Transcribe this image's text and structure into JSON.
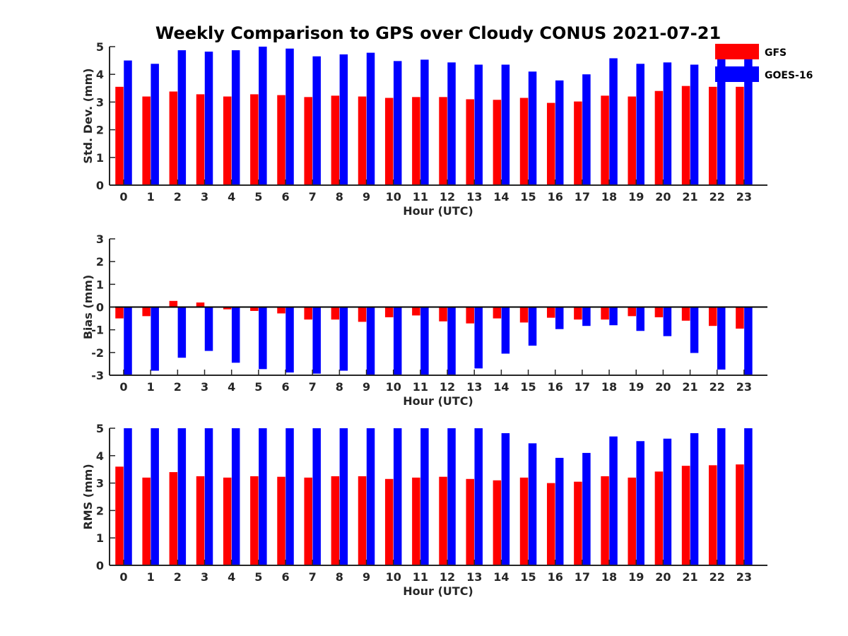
{
  "title": "Weekly Comparison to GPS over Cloudy CONUS 2021-07-21",
  "colors": {
    "gfs": "#ff0000",
    "goes": "#0000ff",
    "axis": "#262626"
  },
  "legend": {
    "placement": "top-right",
    "items": [
      "GFS",
      "GOES-16"
    ]
  },
  "chart_data": [
    {
      "type": "bar",
      "xlabel": "Hour (UTC)",
      "ylabel": "Std. Dev. (mm)",
      "ylim": [
        0,
        5
      ],
      "yticks": [
        0,
        1,
        2,
        3,
        4,
        5
      ],
      "grid": false,
      "categories": [
        "0",
        "1",
        "2",
        "3",
        "4",
        "5",
        "6",
        "7",
        "8",
        "9",
        "10",
        "11",
        "12",
        "13",
        "14",
        "15",
        "16",
        "17",
        "18",
        "19",
        "20",
        "21",
        "22",
        "23"
      ],
      "series": [
        {
          "name": "GFS",
          "values": [
            3.55,
            3.2,
            3.38,
            3.28,
            3.2,
            3.28,
            3.25,
            3.18,
            3.23,
            3.2,
            3.15,
            3.18,
            3.18,
            3.1,
            3.08,
            3.15,
            2.97,
            3.02,
            3.23,
            3.2,
            3.4,
            3.58,
            3.55,
            3.55
          ]
        },
        {
          "name": "GOES-16",
          "values": [
            4.5,
            4.38,
            4.87,
            4.82,
            4.87,
            5.0,
            4.93,
            4.65,
            4.72,
            4.78,
            4.48,
            4.53,
            4.43,
            4.35,
            4.35,
            4.1,
            3.78,
            4.0,
            4.58,
            4.38,
            4.43,
            4.35,
            4.55,
            4.6
          ]
        }
      ]
    },
    {
      "type": "bar",
      "xlabel": "Hour (UTC)",
      "ylabel": "Bias (mm)",
      "ylim": [
        -3,
        3
      ],
      "yticks": [
        -3,
        -2,
        -1,
        0,
        1,
        2,
        3
      ],
      "grid": false,
      "zero_line": true,
      "categories": [
        "0",
        "1",
        "2",
        "3",
        "4",
        "5",
        "6",
        "7",
        "8",
        "9",
        "10",
        "11",
        "12",
        "13",
        "14",
        "15",
        "16",
        "17",
        "18",
        "19",
        "20",
        "21",
        "22",
        "23"
      ],
      "series": [
        {
          "name": "GFS",
          "values": [
            -0.5,
            -0.4,
            0.27,
            0.2,
            -0.1,
            -0.17,
            -0.28,
            -0.55,
            -0.55,
            -0.65,
            -0.45,
            -0.37,
            -0.63,
            -0.72,
            -0.5,
            -0.68,
            -0.47,
            -0.55,
            -0.55,
            -0.4,
            -0.45,
            -0.6,
            -0.83,
            -0.95
          ]
        },
        {
          "name": "GOES-16",
          "values": [
            -3.0,
            -2.8,
            -2.23,
            -1.93,
            -2.45,
            -2.73,
            -2.88,
            -2.93,
            -2.8,
            -3.0,
            -2.97,
            -3.0,
            -3.0,
            -2.7,
            -2.05,
            -1.7,
            -0.97,
            -0.83,
            -0.8,
            -1.05,
            -1.28,
            -2.02,
            -2.75,
            -3.0
          ]
        }
      ]
    },
    {
      "type": "bar",
      "xlabel": "Hour (UTC)",
      "ylabel": "RMS (mm)",
      "ylim": [
        0,
        5
      ],
      "yticks": [
        0,
        1,
        2,
        3,
        4,
        5
      ],
      "grid": false,
      "categories": [
        "0",
        "1",
        "2",
        "3",
        "4",
        "5",
        "6",
        "7",
        "8",
        "9",
        "10",
        "11",
        "12",
        "13",
        "14",
        "15",
        "16",
        "17",
        "18",
        "19",
        "20",
        "21",
        "22",
        "23"
      ],
      "series": [
        {
          "name": "GFS",
          "values": [
            3.6,
            3.2,
            3.4,
            3.25,
            3.2,
            3.25,
            3.23,
            3.2,
            3.25,
            3.25,
            3.15,
            3.2,
            3.23,
            3.15,
            3.1,
            3.2,
            3.0,
            3.05,
            3.25,
            3.2,
            3.42,
            3.63,
            3.65,
            3.68
          ]
        },
        {
          "name": "GOES-16",
          "values": [
            5.0,
            5.0,
            5.0,
            5.0,
            5.0,
            5.0,
            5.0,
            5.0,
            5.0,
            5.0,
            5.0,
            5.0,
            5.0,
            5.0,
            4.82,
            4.45,
            3.92,
            4.1,
            4.7,
            4.53,
            4.62,
            4.82,
            5.0,
            5.0
          ]
        }
      ]
    }
  ]
}
